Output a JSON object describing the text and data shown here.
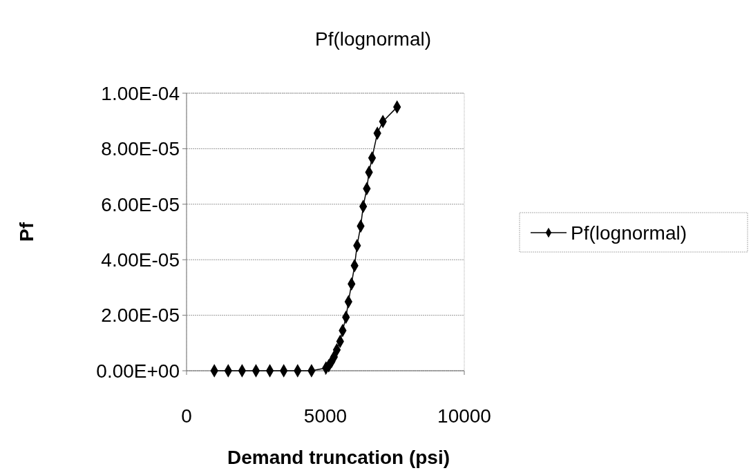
{
  "chart_data": {
    "type": "line",
    "title": "Pf(lognormal)",
    "xlabel": "Demand truncation (psi)",
    "ylabel": "Pf",
    "x": [
      1000,
      1500,
      2000,
      2500,
      3000,
      3500,
      4000,
      4500,
      5020,
      5120,
      5220,
      5310,
      5410,
      5530,
      5620,
      5740,
      5830,
      5940,
      6050,
      6140,
      6270,
      6360,
      6490,
      6570,
      6680,
      6870,
      7070,
      7580
    ],
    "series": [
      {
        "name": "Pf(lognormal)",
        "color": "#000000",
        "values": [
          0,
          0,
          0,
          0,
          0,
          0,
          0,
          0,
          1e-06,
          1.8e-06,
          3.3e-06,
          5e-06,
          7.5e-06,
          1.06e-05,
          1.45e-05,
          1.93e-05,
          2.49e-05,
          3.13e-05,
          3.79e-05,
          4.51e-05,
          5.21e-05,
          5.92e-05,
          6.56e-05,
          7.15e-05,
          7.67e-05,
          8.56e-05,
          8.98e-05,
          9.5e-05
        ]
      }
    ],
    "xlim": [
      0,
      10000
    ],
    "xticks": [
      0,
      5000,
      10000
    ],
    "ylim": [
      0,
      0.0001
    ],
    "yticks": [
      {
        "value": 0,
        "label": "0.00E+00"
      },
      {
        "value": 2e-05,
        "label": "2.00E-05"
      },
      {
        "value": 4e-05,
        "label": "4.00E-05"
      },
      {
        "value": 6e-05,
        "label": "6.00E-05"
      },
      {
        "value": 8e-05,
        "label": "8.00E-05"
      },
      {
        "value": 0.0001,
        "label": "1.00E-04"
      }
    ],
    "grid": "y",
    "legend": "right",
    "marker": "diamond",
    "line_style": "solid"
  }
}
